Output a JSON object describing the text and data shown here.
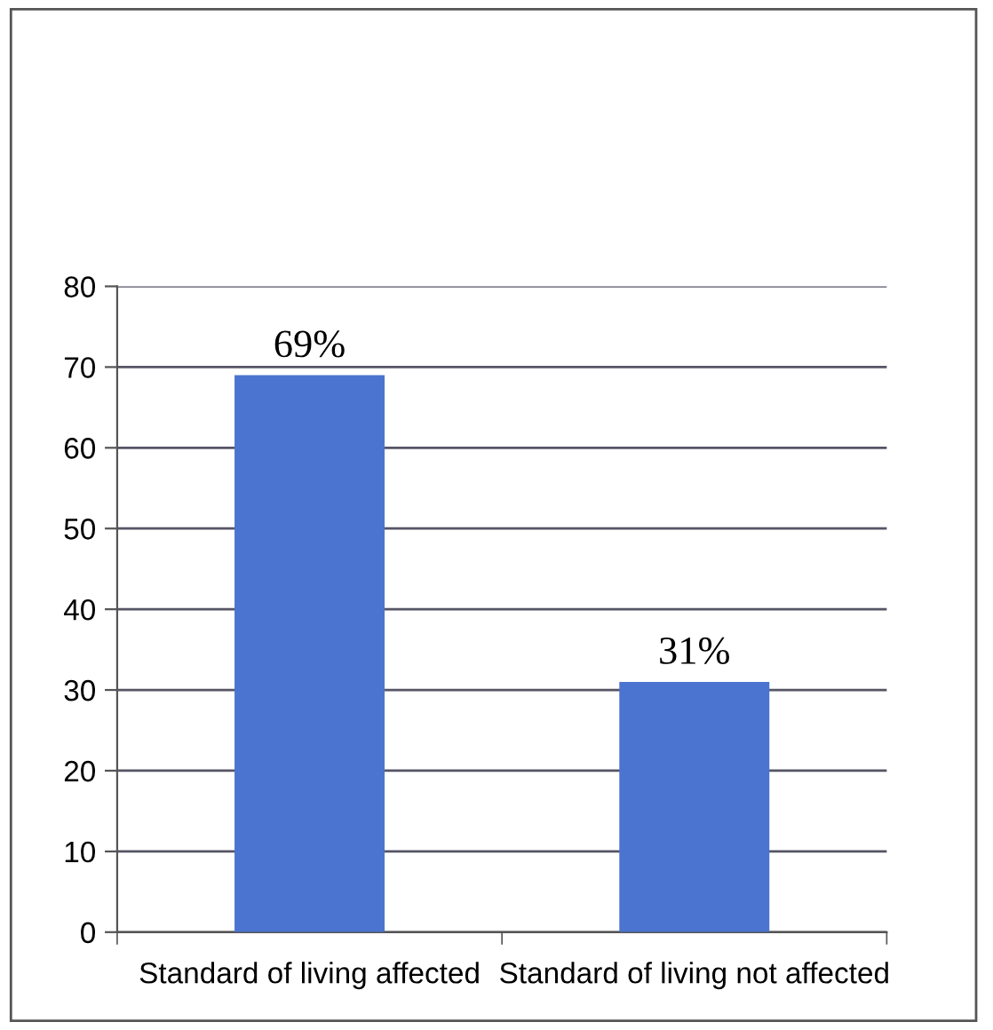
{
  "chart_data": {
    "type": "bar",
    "categories": [
      "Standard of living affected",
      "Standard of living not affected"
    ],
    "values": [
      69,
      31
    ],
    "color": "#4a74cf",
    "value_labels": [
      "69%",
      "31%"
    ],
    "ylim": [
      0,
      80
    ],
    "yticks": [
      0,
      10,
      20,
      30,
      40,
      50,
      60,
      70,
      80
    ],
    "grid": "y",
    "legend": false
  }
}
